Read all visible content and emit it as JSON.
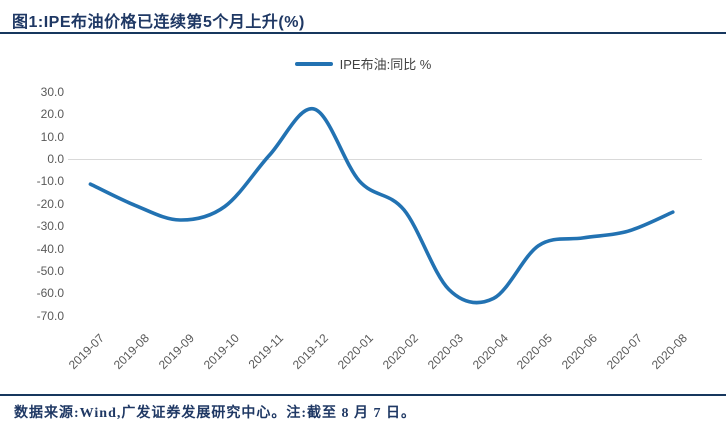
{
  "header": {
    "title": "图1:IPE布油价格已连续第5个月上升(%)"
  },
  "legend": {
    "label": "IPE布油:同比 %"
  },
  "footer": {
    "text": "数据来源:Wind,广发证券发展研究中心。注:截至 8 月 7 日。"
  },
  "colors": {
    "line": "#2272B2",
    "title_text": "#1F3864",
    "rule": "#17375E",
    "axis_text": "#595959",
    "gridline": "#D9D9D9"
  },
  "chart_data": {
    "type": "line",
    "title": "图1:IPE布油价格已连续第5个月上升(%)",
    "smoothed": true,
    "x": [
      "2019-07",
      "2019-08",
      "2019-09",
      "2019-10",
      "2019-11",
      "2019-12",
      "2020-01",
      "2020-02",
      "2020-03",
      "2020-04",
      "2020-05",
      "2020-06",
      "2020-07",
      "2020-08"
    ],
    "series": [
      {
        "name": "IPE布油:同比 %",
        "values": [
          -11.0,
          -20.5,
          -27.0,
          -21.0,
          2.0,
          22.5,
          -9.5,
          -22.5,
          -58.0,
          -62.0,
          -38.5,
          -35.0,
          -32.0,
          -23.5
        ]
      }
    ],
    "xlabel": "",
    "ylabel": "",
    "ylim": [
      -70,
      30
    ],
    "y_ticks": [
      "30.0",
      "20.0",
      "10.0",
      "0.0",
      "-10.0",
      "-20.0",
      "-30.0",
      "-40.0",
      "-50.0",
      "-60.0",
      "-70.0"
    ],
    "grid": "single horizontal gridline at 0 only",
    "legend_position": "top-center"
  }
}
